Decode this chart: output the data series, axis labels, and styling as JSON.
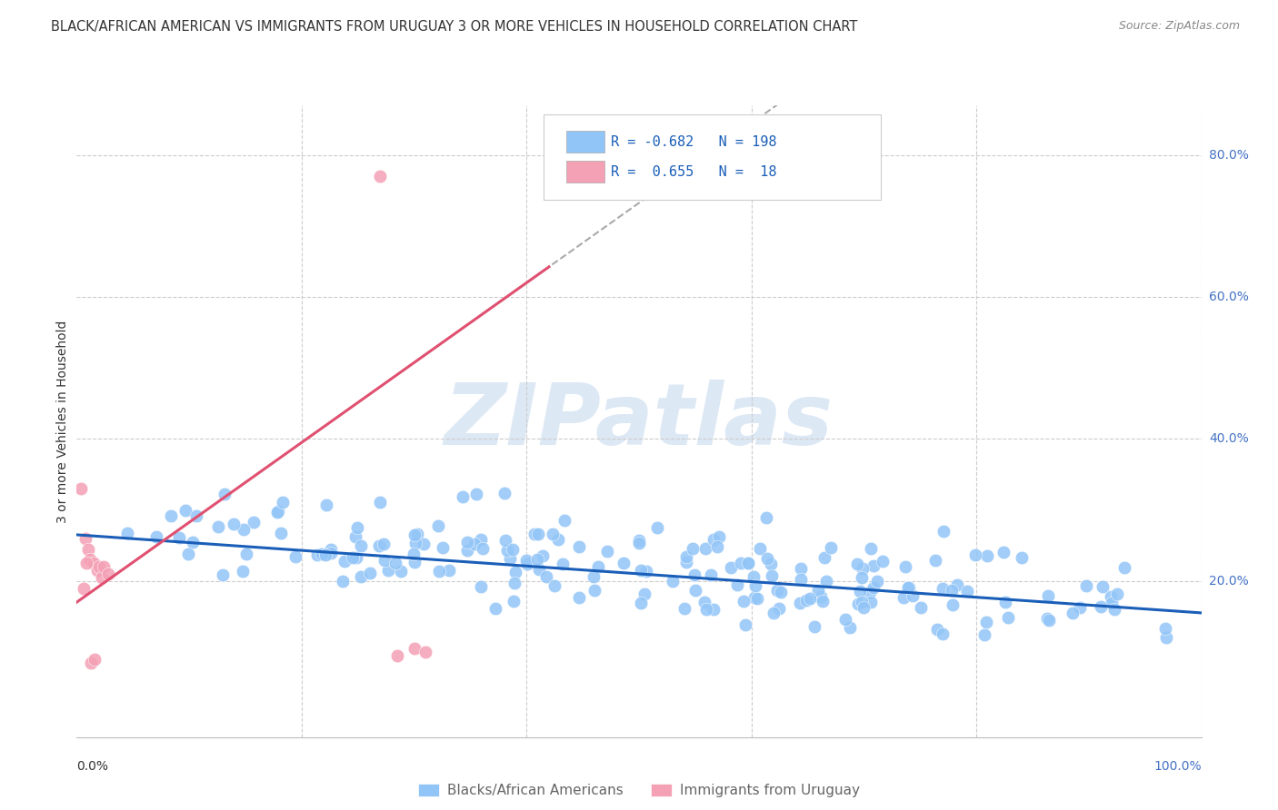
{
  "title": "BLACK/AFRICAN AMERICAN VS IMMIGRANTS FROM URUGUAY 3 OR MORE VEHICLES IN HOUSEHOLD CORRELATION CHART",
  "source": "Source: ZipAtlas.com",
  "ylabel": "3 or more Vehicles in Household",
  "xlim": [
    0.0,
    1.0
  ],
  "ylim": [
    -0.02,
    0.87
  ],
  "blue_R": -0.682,
  "blue_N": 198,
  "pink_R": 0.655,
  "pink_N": 18,
  "blue_color": "#92c5f7",
  "pink_color": "#f4a0b5",
  "blue_line_color": "#1a5eb8",
  "pink_line_color": "#e05070",
  "watermark_color": "#dde8f5",
  "background_color": "#ffffff",
  "grid_color": "#cccccc",
  "title_color": "#333333",
  "legend_text_color": "#1a5eb8",
  "axis_label_color": "#4472c4",
  "bottom_label_color": "#666666"
}
